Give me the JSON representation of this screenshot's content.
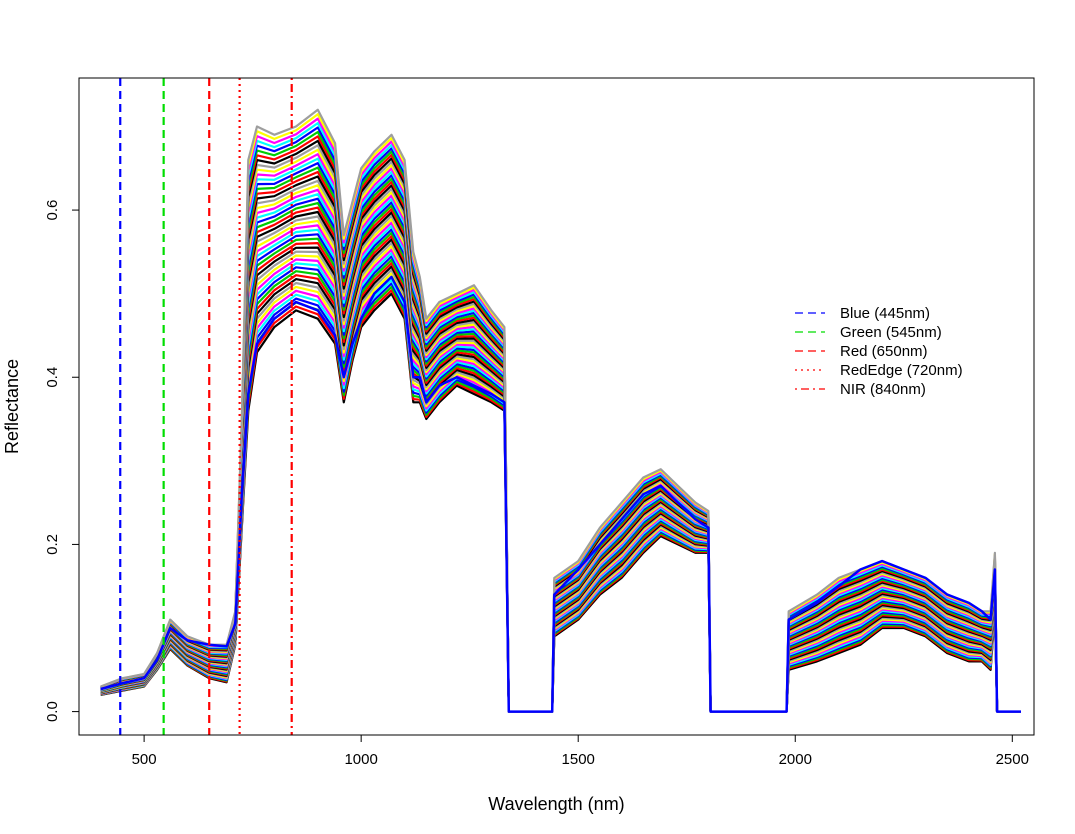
{
  "chart_data": {
    "type": "line",
    "xlabel": "Wavelength (nm)",
    "ylabel": "Reflectance",
    "xlim": [
      350,
      2550
    ],
    "ylim": [
      -0.028,
      0.758
    ],
    "x_ticks": [
      500,
      1000,
      1500,
      2000,
      2500
    ],
    "y_ticks": [
      0.0,
      0.2,
      0.4,
      0.6
    ],
    "x_tick_labels": [
      "500",
      "1000",
      "1500",
      "2000",
      "2500"
    ],
    "y_tick_labels": [
      "0.0",
      "0.2",
      "0.4",
      "0.6"
    ],
    "grid": false,
    "legend_position": "right",
    "reference_lines": [
      {
        "label": "Blue (445nm)",
        "x": 445,
        "color": "#0000ff",
        "style": "dashed"
      },
      {
        "label": "Green (545nm)",
        "x": 545,
        "color": "#00dd00",
        "style": "dashed"
      },
      {
        "label": "Red (650nm)",
        "x": 650,
        "color": "#ff0000",
        "style": "dashed"
      },
      {
        "label": "RedEdge (720nm)",
        "x": 720,
        "color": "#ff0000",
        "style": "dotted"
      },
      {
        "label": "NIR (840nm)",
        "x": 840,
        "color": "#ff0000",
        "style": "dotdash"
      }
    ],
    "curve_colors": [
      "#000000",
      "#ff0000",
      "#00cc00",
      "#0000ff",
      "#00ffff",
      "#ff00ff",
      "#ffff00",
      "#9e9e9e"
    ],
    "spectrum_envelope": {
      "x": [
        400,
        450,
        500,
        530,
        560,
        600,
        650,
        690,
        710,
        725,
        740,
        760,
        800,
        850,
        900,
        940,
        960,
        980,
        1000,
        1030,
        1070,
        1100,
        1120,
        1135,
        1150,
        1180,
        1220,
        1260,
        1300,
        1330,
        1340,
        1345,
        1440,
        1445,
        1500,
        1550,
        1600,
        1650,
        1690,
        1730,
        1770,
        1800,
        1805,
        1980,
        1985,
        2050,
        2100,
        2150,
        2200,
        2250,
        2300,
        2350,
        2400,
        2430,
        2450,
        2460,
        2465,
        2520
      ],
      "low": [
        0.02,
        0.025,
        0.03,
        0.05,
        0.075,
        0.055,
        0.04,
        0.035,
        0.08,
        0.22,
        0.36,
        0.43,
        0.46,
        0.48,
        0.47,
        0.44,
        0.37,
        0.42,
        0.46,
        0.48,
        0.5,
        0.47,
        0.37,
        0.37,
        0.35,
        0.37,
        0.39,
        0.38,
        0.37,
        0.36,
        0.0,
        0.0,
        0.0,
        0.09,
        0.11,
        0.14,
        0.16,
        0.19,
        0.21,
        0.2,
        0.19,
        0.19,
        0.0,
        0.0,
        0.05,
        0.06,
        0.07,
        0.08,
        0.1,
        0.1,
        0.09,
        0.07,
        0.06,
        0.06,
        0.05,
        0.12,
        0.0,
        0.0
      ],
      "high": [
        0.03,
        0.04,
        0.045,
        0.07,
        0.11,
        0.09,
        0.08,
        0.08,
        0.12,
        0.35,
        0.66,
        0.7,
        0.69,
        0.7,
        0.72,
        0.68,
        0.57,
        0.61,
        0.65,
        0.67,
        0.69,
        0.66,
        0.55,
        0.52,
        0.47,
        0.49,
        0.5,
        0.51,
        0.48,
        0.46,
        0.0,
        0.0,
        0.0,
        0.16,
        0.18,
        0.22,
        0.25,
        0.28,
        0.29,
        0.27,
        0.25,
        0.24,
        0.0,
        0.0,
        0.12,
        0.14,
        0.16,
        0.17,
        0.18,
        0.17,
        0.16,
        0.14,
        0.13,
        0.12,
        0.12,
        0.19,
        0.0,
        0.0
      ]
    },
    "series": [
      {
        "color": "#0000ff",
        "x": [
          400,
          450,
          500,
          530,
          560,
          600,
          650,
          690,
          710,
          725,
          740,
          760,
          800,
          850,
          900,
          940,
          960,
          980,
          1000,
          1030,
          1070,
          1100,
          1120,
          1135,
          1150,
          1180,
          1220,
          1260,
          1300,
          1330,
          1340,
          1345,
          1440,
          1445,
          1500,
          1550,
          1600,
          1650,
          1690,
          1730,
          1770,
          1800,
          1805,
          1980,
          1985,
          2050,
          2100,
          2150,
          2200,
          2250,
          2300,
          2350,
          2400,
          2430,
          2450,
          2460,
          2465,
          2520
        ],
        "y": [
          0.027,
          0.034,
          0.04,
          0.062,
          0.1,
          0.085,
          0.08,
          0.078,
          0.105,
          0.26,
          0.38,
          0.44,
          0.47,
          0.49,
          0.48,
          0.45,
          0.4,
          0.44,
          0.47,
          0.5,
          0.52,
          0.49,
          0.4,
          0.4,
          0.37,
          0.39,
          0.4,
          0.39,
          0.38,
          0.37,
          0.0,
          0.0,
          0.0,
          0.14,
          0.17,
          0.2,
          0.23,
          0.26,
          0.27,
          0.25,
          0.23,
          0.22,
          0.0,
          0.0,
          0.11,
          0.13,
          0.15,
          0.17,
          0.18,
          0.17,
          0.16,
          0.14,
          0.13,
          0.12,
          0.11,
          0.17,
          0.0,
          0.0
        ]
      }
    ]
  }
}
